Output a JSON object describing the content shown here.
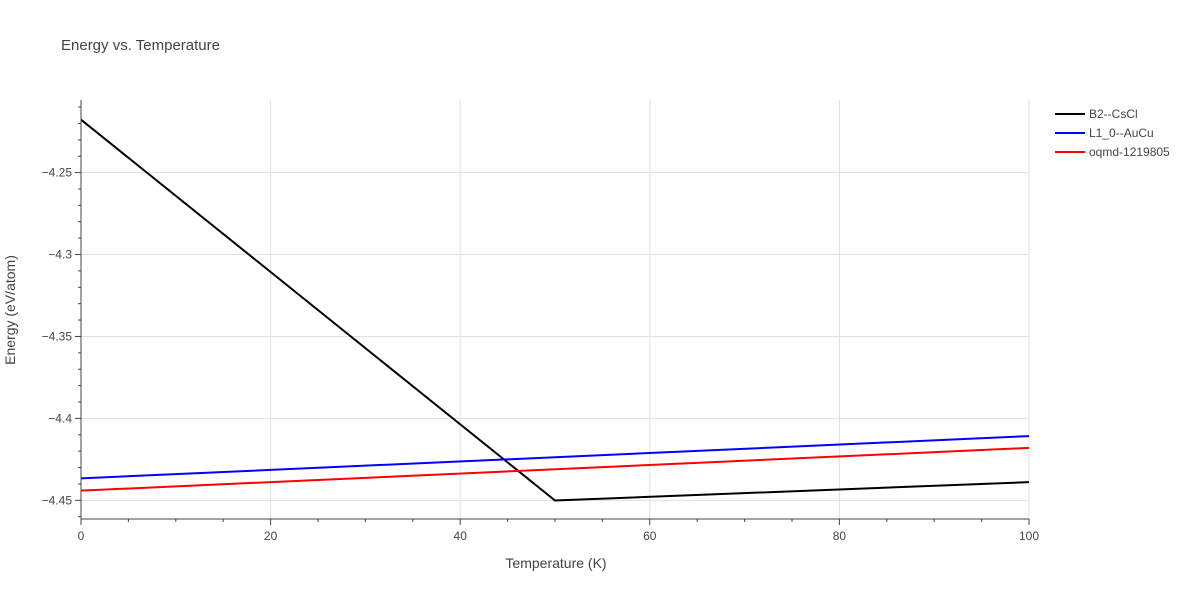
{
  "chart_data": {
    "type": "line",
    "title": "Energy vs. Temperature",
    "xlabel": "Temperature (K)",
    "ylabel": "Energy (eV/atom)",
    "xlim": [
      0,
      100
    ],
    "ylim": [
      -4.4614,
      -4.2057
    ],
    "x_ticks": [
      0,
      20,
      40,
      60,
      80,
      100
    ],
    "x_tick_labels": [
      "0",
      "20",
      "40",
      "60",
      "80",
      "100"
    ],
    "y_ticks": [
      -4.45,
      -4.4,
      -4.35,
      -4.3,
      -4.25
    ],
    "y_tick_labels": [
      "−4.45",
      "−4.4",
      "−4.35",
      "−4.3",
      "−4.25"
    ],
    "grid": true,
    "legend_position": "top-right",
    "series": [
      {
        "name": "B2--CsCl",
        "color": "#000000",
        "x": [
          0,
          50,
          100
        ],
        "y": [
          -4.2177,
          -4.4501,
          -4.4389
        ]
      },
      {
        "name": "L1_0--AuCu",
        "color": "#0000ff",
        "x": [
          0,
          100
        ],
        "y": [
          -4.4366,
          -4.4108
        ]
      },
      {
        "name": "oqmd-1219805",
        "color": "#ff0000",
        "x": [
          0,
          100
        ],
        "y": [
          -4.4441,
          -4.418
        ]
      }
    ]
  }
}
